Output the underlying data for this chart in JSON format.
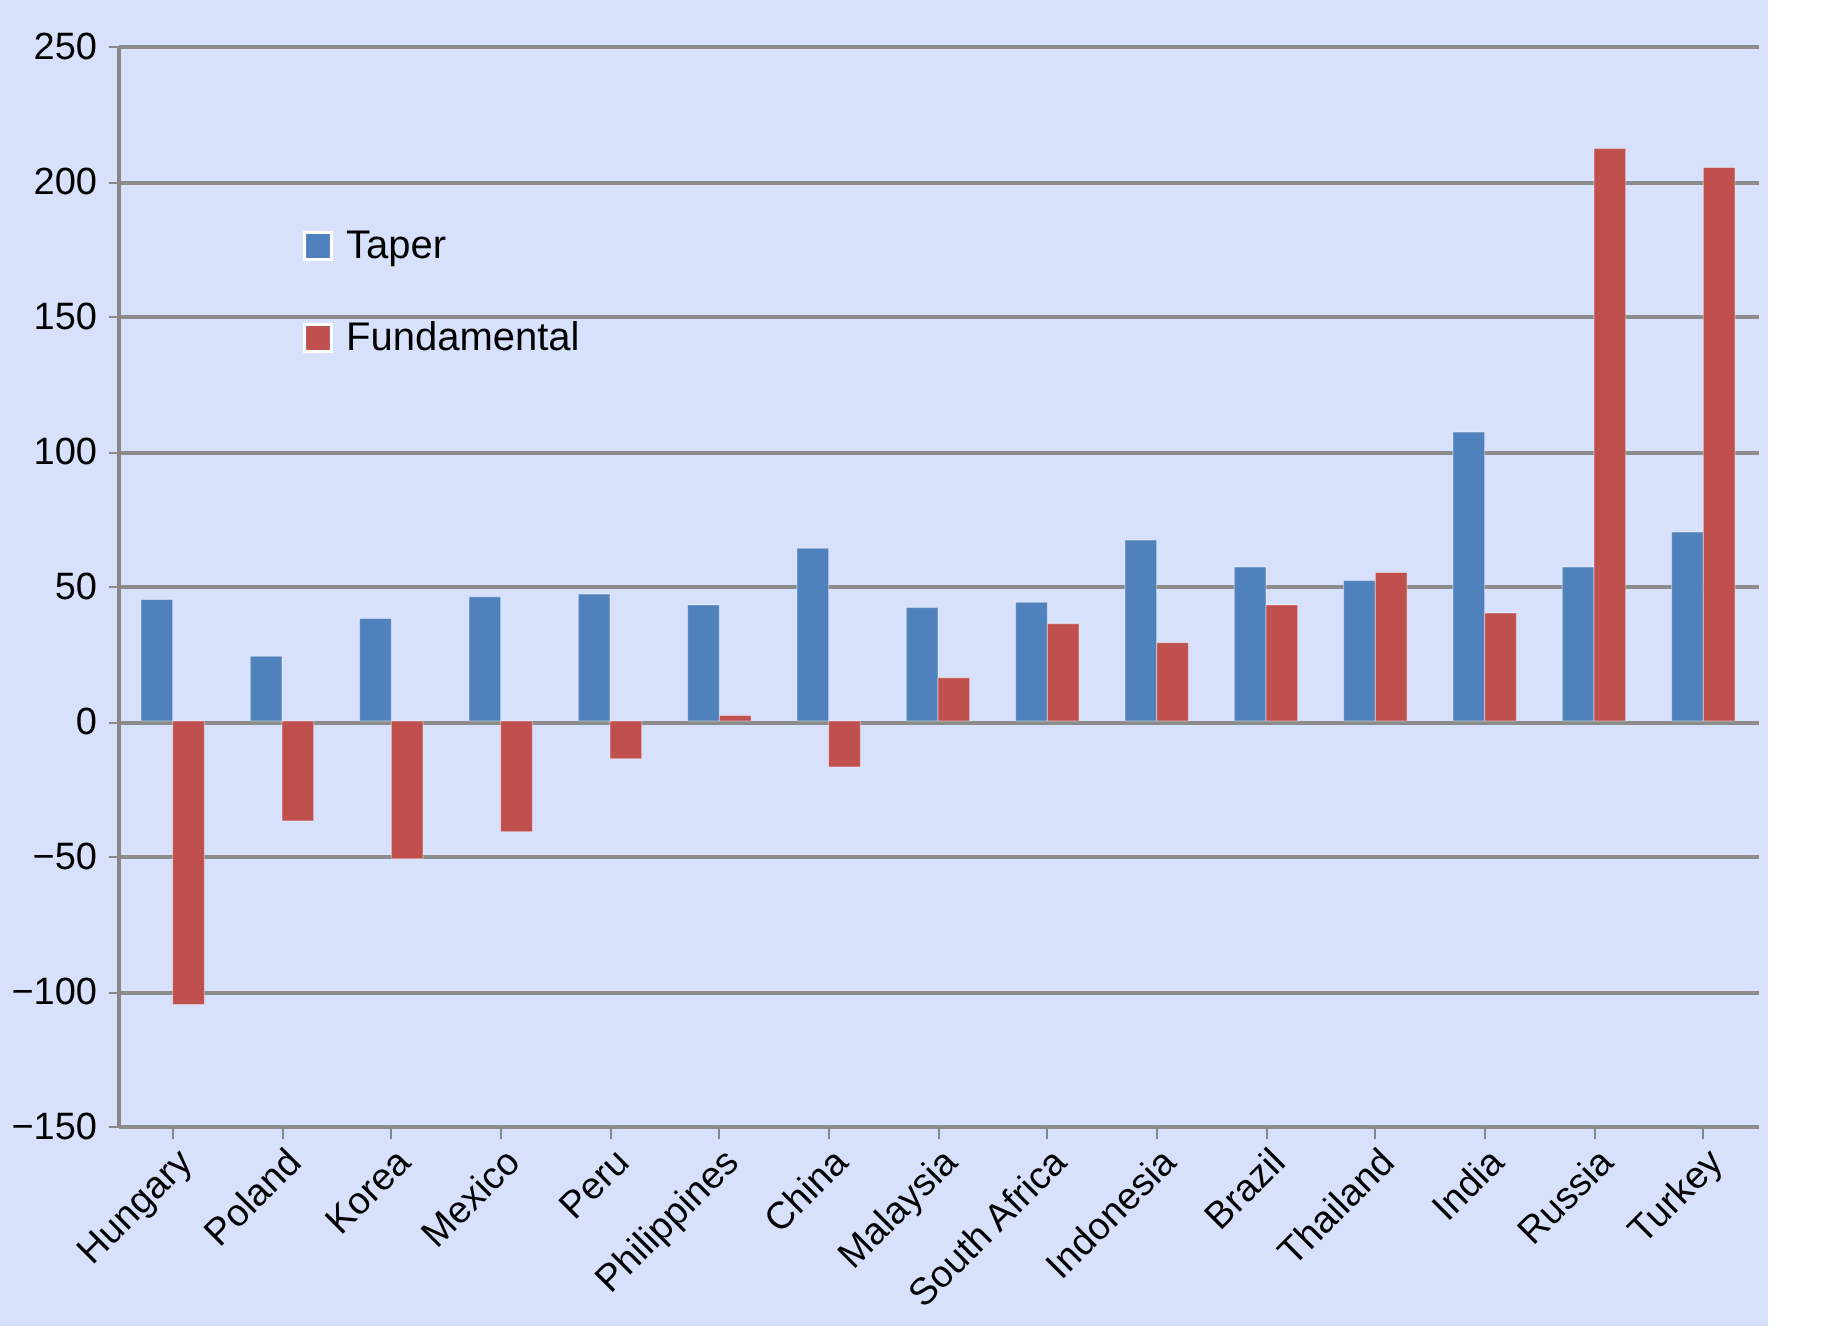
{
  "chart_data": {
    "type": "bar",
    "categories": [
      "Hungary",
      "Poland",
      "Korea",
      "Mexico",
      "Peru",
      "Philippines",
      "China",
      "Malaysia",
      "South Africa",
      "Indonesia",
      "Brazil",
      "Thailand",
      "India",
      "Russia",
      "Turkey"
    ],
    "series": [
      {
        "name": "Taper",
        "color": "#4f81bd",
        "values": [
          45,
          24,
          38,
          46,
          47,
          43,
          64,
          42,
          44,
          67,
          57,
          52,
          107,
          57,
          70
        ]
      },
      {
        "name": "Fundamental",
        "color": "#c0504d",
        "values": [
          -105,
          -37,
          -51,
          -41,
          -14,
          2,
          -17,
          16,
          36,
          29,
          43,
          55,
          40,
          212,
          205
        ]
      }
    ],
    "ylim": [
      -150,
      250
    ],
    "yticks": [
      -150,
      -100,
      -50,
      0,
      50,
      100,
      150,
      200,
      250
    ],
    "grid": "y",
    "legend": "top left"
  }
}
